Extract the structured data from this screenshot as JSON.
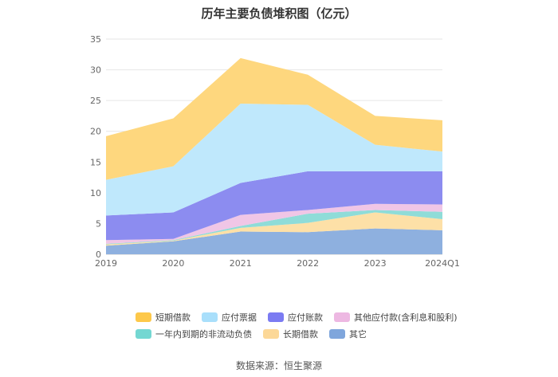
{
  "chart_data": {
    "type": "area",
    "stacked": true,
    "title": "历年主要负债堆积图（亿元）",
    "categories": [
      "2019",
      "2020",
      "2021",
      "2022",
      "2023",
      "2024Q1"
    ],
    "y_ticks": [
      "0",
      "5",
      "10",
      "15",
      "20",
      "25",
      "30",
      "35"
    ],
    "ylim": [
      0,
      35
    ],
    "grid": true,
    "series": [
      {
        "name": "其它",
        "color": "#8eb0df",
        "values": [
          1.4,
          2.1,
          3.7,
          3.6,
          4.2,
          3.9
        ]
      },
      {
        "name": "长期借款",
        "color": "#fde0a7",
        "values": [
          0.2,
          0.1,
          0.6,
          1.5,
          2.6,
          1.8
        ]
      },
      {
        "name": "一年内到期的非流动负债",
        "color": "#8fdcd8",
        "values": [
          0.1,
          0.1,
          0.3,
          1.5,
          0.4,
          1.2
        ]
      },
      {
        "name": "其他应付款(含利息和股利)",
        "color": "#f0c6e6",
        "values": [
          0.6,
          0.2,
          1.8,
          0.6,
          1.0,
          1.2
        ]
      },
      {
        "name": "应付账款",
        "color": "#8c8cf0",
        "values": [
          4.0,
          4.3,
          5.2,
          6.3,
          5.3,
          5.4
        ]
      },
      {
        "name": "应付票据",
        "color": "#bfe8fc",
        "values": [
          5.8,
          7.5,
          12.9,
          10.8,
          4.3,
          3.2
        ]
      },
      {
        "name": "短期借款",
        "color": "#fed77e",
        "values": [
          7.1,
          7.8,
          7.4,
          4.9,
          4.7,
          5.1
        ]
      }
    ]
  },
  "legend": {
    "row1": [
      {
        "label": "短期借款",
        "color": "#fdc84a"
      },
      {
        "label": "应付票据",
        "color": "#a9dffb"
      },
      {
        "label": "应付账款",
        "color": "#7b7bf2"
      },
      {
        "label": "其他应付款(含利息和股利)",
        "color": "#edb8e2"
      }
    ],
    "row2": [
      {
        "label": "一年内到期的非流动负债",
        "color": "#74d7d2"
      },
      {
        "label": "长期借款",
        "color": "#fcd898"
      },
      {
        "label": "其它",
        "color": "#7fa6dc"
      }
    ]
  },
  "source": "数据来源：恒生聚源"
}
